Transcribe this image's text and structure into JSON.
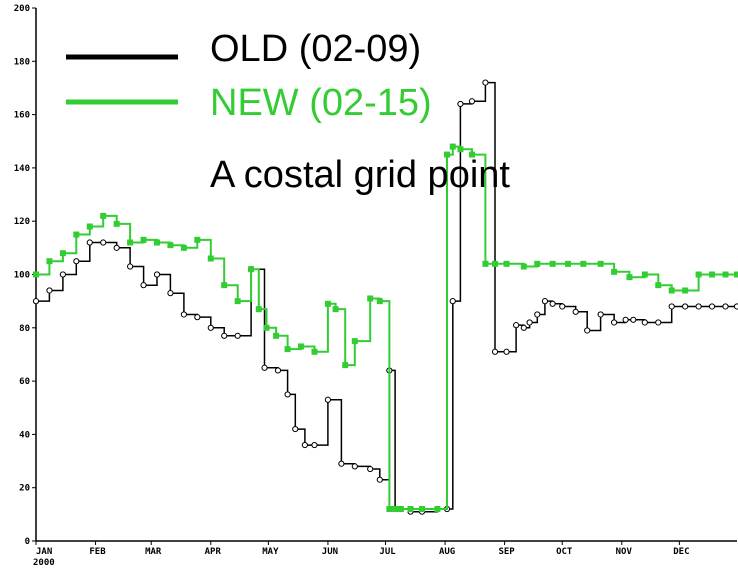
{
  "chart_data": {
    "type": "line",
    "title": "",
    "xlabel": "",
    "ylabel": "",
    "x_ticks": [
      "JAN",
      "FEB",
      "MAR",
      "APR",
      "MAY",
      "JUN",
      "JUL",
      "AUG",
      "SEP",
      "OCT",
      "NOV",
      "DEC"
    ],
    "x_year": "2000",
    "xlim_days": [
      1,
      366
    ],
    "ylim": [
      0,
      200
    ],
    "y_ticks": [
      0,
      20,
      40,
      60,
      80,
      100,
      120,
      140,
      160,
      180,
      200
    ],
    "grid": false,
    "legend_placement": "top-left",
    "annotation": "A costal grid point",
    "series": [
      {
        "name": "OLD (02-09)",
        "color": "#000000",
        "x": [
          1,
          8,
          15,
          22,
          29,
          36,
          43,
          50,
          57,
          64,
          71,
          78,
          85,
          92,
          99,
          106,
          113,
          120,
          127,
          132,
          136,
          141,
          146,
          153,
          160,
          167,
          175,
          180,
          185,
          188,
          191,
          196,
          202,
          210,
          215,
          218,
          222,
          228,
          235,
          240,
          246,
          251,
          255,
          258,
          262,
          266,
          270,
          275,
          282,
          288,
          295,
          302,
          308,
          312,
          318,
          325,
          332,
          339,
          346,
          353,
          360,
          366
        ],
        "y": [
          90,
          94,
          100,
          105,
          112,
          112,
          110,
          103,
          96,
          100,
          93,
          85,
          84,
          80,
          77,
          77,
          102,
          65,
          64,
          55,
          42,
          36,
          36,
          53,
          29,
          28,
          27,
          23,
          64,
          12,
          12,
          11,
          11,
          12,
          12,
          90,
          164,
          165,
          172,
          71,
          71,
          81,
          80,
          82,
          85,
          90,
          89,
          88,
          86,
          79,
          85,
          82,
          83,
          83,
          82,
          82,
          88,
          88,
          88,
          88,
          88,
          88
        ]
      },
      {
        "name": "NEW (02-15)",
        "color": "#33cc33",
        "x": [
          1,
          8,
          15,
          22,
          29,
          36,
          43,
          50,
          57,
          64,
          71,
          78,
          85,
          92,
          99,
          106,
          113,
          117,
          121,
          126,
          132,
          139,
          146,
          153,
          157,
          162,
          167,
          175,
          180,
          185,
          188,
          191,
          196,
          202,
          210,
          215,
          218,
          222,
          228,
          235,
          240,
          246,
          255,
          262,
          270,
          278,
          286,
          295,
          302,
          310,
          318,
          325,
          332,
          339,
          346,
          353,
          360,
          366
        ],
        "y": [
          100,
          105,
          108,
          115,
          118,
          122,
          119,
          112,
          113,
          112,
          111,
          110,
          113,
          106,
          96,
          90,
          102,
          87,
          80,
          77,
          72,
          73,
          71,
          89,
          87,
          66,
          75,
          91,
          90,
          12,
          12,
          12,
          12,
          12,
          12,
          145,
          148,
          147,
          145,
          104,
          104,
          104,
          103,
          104,
          104,
          104,
          104,
          104,
          101,
          99,
          100,
          96,
          94,
          94,
          100,
          100,
          100,
          100
        ]
      }
    ]
  }
}
